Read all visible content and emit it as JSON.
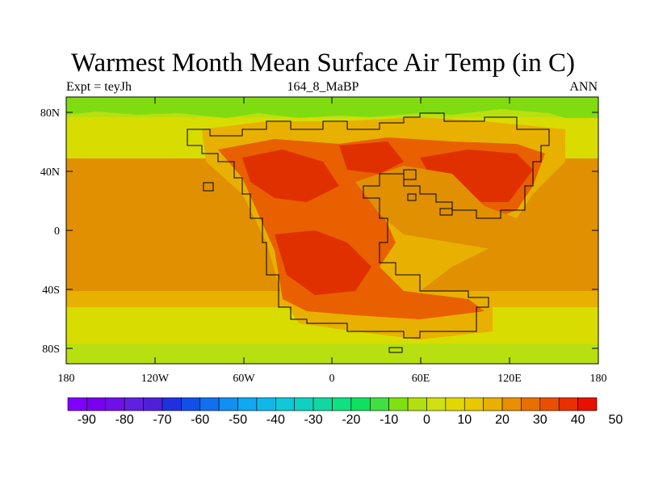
{
  "title": "Warmest Month Mean Surface Air Temp (in C)",
  "left_label": "Expt = teyJh",
  "center_label": "164_8_MaBP",
  "right_label": "ANN",
  "lat_ticks": [
    "80N",
    "40N",
    "0",
    "40S",
    "80S"
  ],
  "lon_ticks": [
    "180",
    "120W",
    "60W",
    "0",
    "60E",
    "120E",
    "180"
  ],
  "colorbar": {
    "labels": [
      "-90",
      "-80",
      "-70",
      "-60",
      "-50",
      "-40",
      "-30",
      "-20",
      "-10",
      "0",
      "10",
      "20",
      "30",
      "40",
      "50"
    ],
    "colors": [
      "#8000ff",
      "#7800f0",
      "#7010e8",
      "#6020e0",
      "#5020d8",
      "#2030e0",
      "#1050e8",
      "#1070f0",
      "#1090f0",
      "#10a8f0",
      "#10b8e8",
      "#10c8d8",
      "#10d0c0",
      "#10d8a0",
      "#10e080",
      "#10e060",
      "#40e040",
      "#80e010",
      "#b0e010",
      "#d0e010",
      "#e0d800",
      "#e8c800",
      "#e8b000",
      "#e89000",
      "#e87000",
      "#e85000",
      "#e83000",
      "#e81000"
    ]
  },
  "map_colors": {
    "polar": "#80dc10",
    "subpolar": "#b8e010",
    "temperate": "#d8dc00",
    "warm": "#e8b000",
    "tropical": "#e09000",
    "hot": "#e86000",
    "hottest": "#e03000"
  }
}
